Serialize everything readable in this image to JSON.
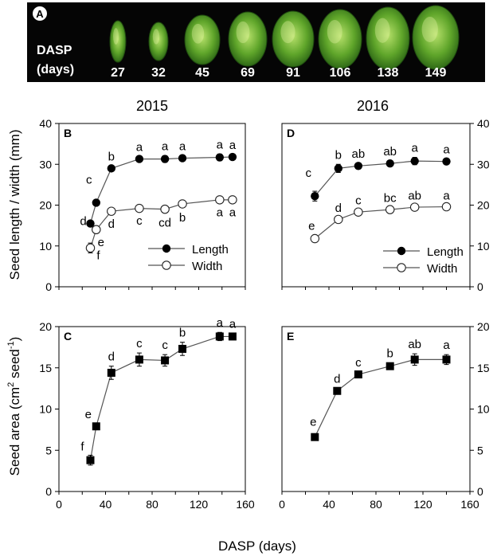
{
  "photo_strip": {
    "panel_label": "A",
    "axis_label_line1": "DASP",
    "axis_label_line2": "(days)",
    "days": [
      "27",
      "32",
      "45",
      "69",
      "91",
      "106",
      "138",
      "149"
    ]
  },
  "figure": {
    "year_left": "2015",
    "year_right": "2016",
    "x_axis_title": "DASP (days)",
    "y_title_top": "Seed length / width (mm)",
    "y_title_bottom_prefix": "Seed area (cm",
    "y_title_bottom_sup1": "2",
    "y_title_bottom_mid": " seed",
    "y_title_bottom_sup2": "-1",
    "y_title_bottom_suffix": ")"
  },
  "chart_data": [
    {
      "panel": "B",
      "type": "line",
      "year": "2015",
      "xlim": [
        0,
        160
      ],
      "ylim": [
        0,
        40
      ],
      "yticks": [
        "0",
        "10",
        "20",
        "30",
        "40"
      ],
      "legend": [
        "Length",
        "Width"
      ],
      "series": [
        {
          "name": "Length",
          "marker": "filled-circle",
          "x": [
            27,
            32,
            45,
            69,
            91,
            106,
            138,
            149
          ],
          "y": [
            15.5,
            20.6,
            29.0,
            31.3,
            31.3,
            31.5,
            31.7,
            31.8
          ],
          "err": [
            0.5,
            0.6,
            0.6,
            0.6,
            0.8,
            0.6,
            0.8,
            0.6
          ],
          "letters": [
            "d",
            "c",
            "b",
            "a",
            "a",
            "a",
            "a",
            "a"
          ]
        },
        {
          "name": "Width",
          "marker": "open-circle",
          "x": [
            27,
            32,
            45,
            69,
            91,
            106,
            138,
            149
          ],
          "y": [
            9.5,
            14.0,
            18.5,
            19.2,
            19.0,
            20.3,
            21.3,
            21.3
          ],
          "err": [
            1.2,
            0.5,
            0.5,
            0.5,
            0.8,
            0.8,
            0.5,
            0.5
          ],
          "letters": [
            "f",
            "e",
            "d",
            "c",
            "cd",
            "b",
            "a",
            "a"
          ]
        }
      ]
    },
    {
      "panel": "D",
      "type": "line",
      "year": "2016",
      "xlim": [
        0,
        160
      ],
      "ylim": [
        0,
        40
      ],
      "yticks": [
        "0",
        "10",
        "20",
        "30",
        "40"
      ],
      "legend": [
        "Length",
        "Width"
      ],
      "series": [
        {
          "name": "Length",
          "marker": "filled-circle",
          "x": [
            28,
            48,
            65,
            92,
            113,
            140
          ],
          "y": [
            22.2,
            29.0,
            29.6,
            30.2,
            30.8,
            30.7
          ],
          "err": [
            1.2,
            1.0,
            0.6,
            0.6,
            0.9,
            0.6
          ],
          "letters": [
            "c",
            "b",
            "ab",
            "ab",
            "a",
            "a"
          ]
        },
        {
          "name": "Width",
          "marker": "open-circle",
          "x": [
            28,
            48,
            65,
            92,
            113,
            140
          ],
          "y": [
            11.8,
            16.5,
            18.3,
            18.9,
            19.5,
            19.6
          ],
          "err": [
            0.5,
            0.5,
            0.5,
            0.5,
            0.5,
            0.4
          ],
          "letters": [
            "e",
            "d",
            "c",
            "bc",
            "ab",
            "a"
          ]
        }
      ]
    },
    {
      "panel": "C",
      "type": "line",
      "year": "2015",
      "xlim": [
        0,
        160
      ],
      "ylim": [
        0,
        20
      ],
      "xticks": [
        "0",
        "40",
        "80",
        "120",
        "160"
      ],
      "yticks": [
        "0",
        "5",
        "10",
        "15",
        "20"
      ],
      "series": [
        {
          "name": "Seed area",
          "marker": "filled-square",
          "x": [
            27,
            32,
            45,
            69,
            91,
            106,
            138,
            149
          ],
          "y": [
            3.8,
            7.9,
            14.4,
            16.0,
            15.9,
            17.3,
            18.8,
            18.8
          ],
          "err": [
            0.6,
            0.4,
            0.8,
            0.8,
            0.7,
            0.8,
            0.5,
            0.4
          ],
          "letters": [
            "f",
            "e",
            "d",
            "c",
            "c",
            "b",
            "a",
            "a"
          ]
        }
      ]
    },
    {
      "panel": "E",
      "type": "line",
      "year": "2016",
      "xlim": [
        0,
        160
      ],
      "ylim": [
        0,
        20
      ],
      "xticks": [
        "0",
        "40",
        "80",
        "120",
        "160"
      ],
      "yticks": [
        "0",
        "5",
        "10",
        "15",
        "20"
      ],
      "series": [
        {
          "name": "Seed area",
          "marker": "filled-square",
          "x": [
            28,
            47,
            65,
            92,
            113,
            140
          ],
          "y": [
            6.6,
            12.2,
            14.2,
            15.2,
            16.0,
            16.0
          ],
          "err": [
            0.4,
            0.3,
            0.3,
            0.4,
            0.7,
            0.6
          ],
          "letters": [
            "e",
            "d",
            "c",
            "b",
            "ab",
            "a"
          ]
        }
      ]
    }
  ]
}
